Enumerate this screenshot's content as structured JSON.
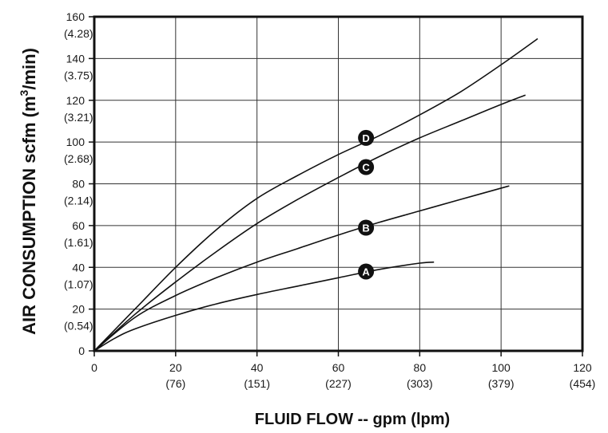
{
  "chart_data": {
    "type": "line",
    "xlabel": "FLUID FLOW -- gpm (lpm)",
    "ylabel_main": "AIR CONSUMPTION scfm (m",
    "ylabel_sup": "3",
    "ylabel_tail": "/min)",
    "xlim": [
      0,
      120
    ],
    "ylim": [
      0,
      160
    ],
    "grid": true,
    "x_ticks": [
      {
        "value": 0,
        "label": "0",
        "sub": ""
      },
      {
        "value": 20,
        "label": "20",
        "sub": "(76)"
      },
      {
        "value": 40,
        "label": "40",
        "sub": "(151)"
      },
      {
        "value": 60,
        "label": "60",
        "sub": "(227)"
      },
      {
        "value": 80,
        "label": "80",
        "sub": "(303)"
      },
      {
        "value": 100,
        "label": "100",
        "sub": "(379)"
      },
      {
        "value": 120,
        "label": "120",
        "sub": "(454)"
      }
    ],
    "y_ticks": [
      {
        "value": 0,
        "label": "0",
        "sub": ""
      },
      {
        "value": 20,
        "label": "20",
        "sub": "(0.54)"
      },
      {
        "value": 40,
        "label": "40",
        "sub": "(1.07)"
      },
      {
        "value": 60,
        "label": "60",
        "sub": "(1.61)"
      },
      {
        "value": 80,
        "label": "80",
        "sub": "(2.14)"
      },
      {
        "value": 100,
        "label": "100",
        "sub": "(2.68)"
      },
      {
        "value": 120,
        "label": "120",
        "sub": "(3.21)"
      },
      {
        "value": 140,
        "label": "140",
        "sub": "(3.75)"
      },
      {
        "value": 160,
        "label": "160",
        "sub": "(4.28)"
      }
    ],
    "series": [
      {
        "name": "A",
        "marker": {
          "x": 66.8,
          "y": 38
        },
        "points": [
          [
            0,
            0
          ],
          [
            5,
            6
          ],
          [
            10,
            10.5
          ],
          [
            20,
            17
          ],
          [
            30,
            22.5
          ],
          [
            40,
            27
          ],
          [
            50,
            31
          ],
          [
            60,
            35
          ],
          [
            70,
            39
          ],
          [
            80,
            42
          ],
          [
            83.5,
            42.5
          ]
        ]
      },
      {
        "name": "B",
        "marker": {
          "x": 66.8,
          "y": 59
        },
        "points": [
          [
            0,
            0
          ],
          [
            10,
            16
          ],
          [
            20,
            26.5
          ],
          [
            30,
            35
          ],
          [
            40,
            42.5
          ],
          [
            50,
            49
          ],
          [
            60,
            55.5
          ],
          [
            70,
            61.5
          ],
          [
            80,
            67
          ],
          [
            90,
            72.5
          ],
          [
            102,
            79
          ]
        ]
      },
      {
        "name": "C",
        "marker": {
          "x": 66.8,
          "y": 88
        },
        "points": [
          [
            0,
            0
          ],
          [
            10,
            17.5
          ],
          [
            20,
            33
          ],
          [
            30,
            47.5
          ],
          [
            40,
            61
          ],
          [
            50,
            72.5
          ],
          [
            60,
            83
          ],
          [
            70,
            93
          ],
          [
            80,
            102
          ],
          [
            90,
            110
          ],
          [
            100,
            118
          ],
          [
            106,
            122.5
          ]
        ]
      },
      {
        "name": "D",
        "marker": {
          "x": 66.8,
          "y": 102
        },
        "points": [
          [
            0,
            0
          ],
          [
            10,
            20
          ],
          [
            20,
            40
          ],
          [
            30,
            58
          ],
          [
            40,
            73
          ],
          [
            50,
            84
          ],
          [
            60,
            94
          ],
          [
            70,
            103
          ],
          [
            80,
            113
          ],
          [
            90,
            124
          ],
          [
            100,
            137
          ],
          [
            109,
            149.5
          ]
        ]
      }
    ]
  }
}
